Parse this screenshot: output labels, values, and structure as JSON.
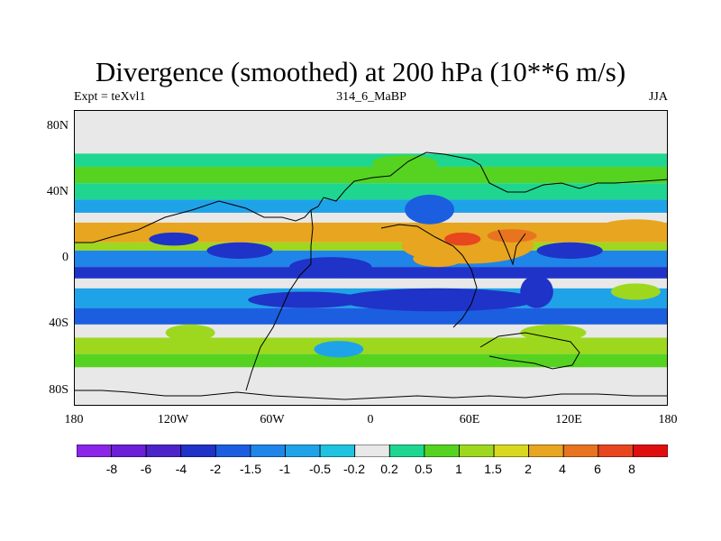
{
  "chart_data": {
    "type": "heatmap",
    "title": "Divergence (smoothed) at 200 hPa (10**6 m/s)",
    "subtitle_left": "Expt = teXvl1",
    "subtitle_center": "314_6_MaBP",
    "subtitle_right": "JJA",
    "x_ticks": [
      "180",
      "120W",
      "60W",
      "0",
      "60E",
      "120E",
      "180"
    ],
    "x_tick_values": [
      -180,
      -120,
      -60,
      0,
      60,
      120,
      180
    ],
    "y_ticks": [
      "80N",
      "40N",
      "0",
      "40S",
      "80S"
    ],
    "y_tick_values": [
      80,
      40,
      0,
      -40,
      -80
    ],
    "xlim": [
      -180,
      180
    ],
    "ylim": [
      -90,
      90
    ],
    "contour_levels": [
      "-8",
      "-6",
      "-4",
      "-2",
      "-1.5",
      "-1",
      "-0.5",
      "-0.2",
      "0.2",
      "0.5",
      "1",
      "1.5",
      "2",
      "4",
      "6",
      "8"
    ],
    "colors": [
      "#8b25e8",
      "#6b1fd6",
      "#4b23c8",
      "#1f33c8",
      "#1b5fe0",
      "#1f85e8",
      "#1fa3e8",
      "#1fc3e0",
      "#e8e8e8",
      "#1fd690",
      "#55d320",
      "#9dd81f",
      "#d8d81f",
      "#e8a51f",
      "#e8741f",
      "#e8461f",
      "#e00f0f"
    ],
    "bands": [
      {
        "lat_min": 56,
        "lat_max": 64,
        "value": 0.3
      },
      {
        "lat_min": 46,
        "lat_max": 56,
        "value": 0.8
      },
      {
        "lat_min": 36,
        "lat_max": 46,
        "value": 0.4
      },
      {
        "lat_min": 28,
        "lat_max": 36,
        "value": -0.8
      },
      {
        "lat_min": 22,
        "lat_max": 28,
        "value": 0.0
      },
      {
        "lat_min": 10,
        "lat_max": 22,
        "value": 2.5
      },
      {
        "lat_min": 5,
        "lat_max": 10,
        "value": 1.2
      },
      {
        "lat_min": -5,
        "lat_max": 5,
        "value": -1.2
      },
      {
        "lat_min": -12,
        "lat_max": -5,
        "value": -2.2
      },
      {
        "lat_min": -18,
        "lat_max": -12,
        "value": 0.0
      },
      {
        "lat_min": -30,
        "lat_max": -18,
        "value": -0.8
      },
      {
        "lat_min": -40,
        "lat_max": -30,
        "value": -1.8
      },
      {
        "lat_min": -48,
        "lat_max": -40,
        "value": 0.0
      },
      {
        "lat_min": -58,
        "lat_max": -48,
        "value": 1.2
      },
      {
        "lat_min": -66,
        "lat_max": -58,
        "value": 0.7
      }
    ],
    "blobs": [
      {
        "lon": 58,
        "lat": 8,
        "w": 80,
        "h": 22,
        "value": 2.5
      },
      {
        "lon": 55,
        "lat": 12,
        "w": 22,
        "h": 8,
        "value": 6.5
      },
      {
        "lon": 85,
        "lat": 14,
        "w": 30,
        "h": 8,
        "value": 5
      },
      {
        "lon": 40,
        "lat": 0,
        "w": 30,
        "h": 10,
        "value": 2.5
      },
      {
        "lon": 35,
        "lat": 30,
        "w": 30,
        "h": 18,
        "value": -1.5
      },
      {
        "lon": 20,
        "lat": 58,
        "w": 40,
        "h": 10,
        "value": 0.7
      },
      {
        "lon": 40,
        "lat": -25,
        "w": 120,
        "h": 14,
        "value": -3
      },
      {
        "lon": -40,
        "lat": -25,
        "w": 70,
        "h": 10,
        "value": -2.5
      },
      {
        "lon": 100,
        "lat": -20,
        "w": 20,
        "h": 20,
        "value": -3
      },
      {
        "lon": -150,
        "lat": 15,
        "w": 40,
        "h": 10,
        "value": 3
      },
      {
        "lon": -120,
        "lat": 12,
        "w": 30,
        "h": 8,
        "value": -2
      },
      {
        "lon": -80,
        "lat": 5,
        "w": 40,
        "h": 10,
        "value": -2.5
      },
      {
        "lon": -25,
        "lat": -5,
        "w": 50,
        "h": 12,
        "value": -3
      },
      {
        "lon": 120,
        "lat": 5,
        "w": 40,
        "h": 10,
        "value": -2
      },
      {
        "lon": 160,
        "lat": 20,
        "w": 40,
        "h": 8,
        "value": 3
      },
      {
        "lon": -110,
        "lat": -45,
        "w": 30,
        "h": 10,
        "value": 1.5
      },
      {
        "lon": 110,
        "lat": -45,
        "w": 40,
        "h": 10,
        "value": 1.5
      },
      {
        "lon": 160,
        "lat": -20,
        "w": 30,
        "h": 10,
        "value": 1.2
      },
      {
        "lon": -20,
        "lat": -55,
        "w": 30,
        "h": 10,
        "value": -0.5
      }
    ]
  }
}
